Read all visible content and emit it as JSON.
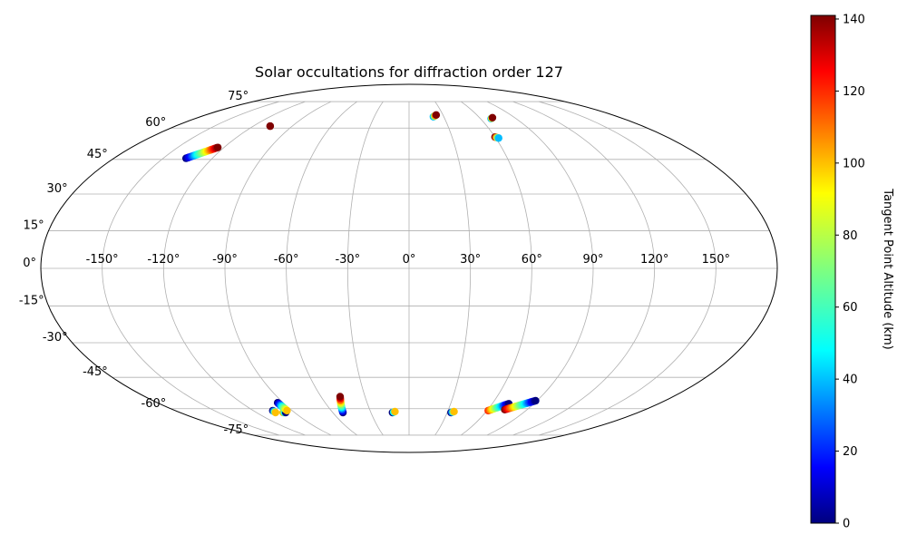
{
  "chart_data": {
    "type": "scatter",
    "projection": "mollweide",
    "title": "Solar occultations for diffraction order 127",
    "xlabel": "",
    "ylabel": "",
    "grid": true,
    "xlim": [
      -180,
      180
    ],
    "ylim": [
      -90,
      90
    ],
    "x_ticks": [
      -150,
      -120,
      -90,
      -60,
      -30,
      0,
      30,
      60,
      90,
      120,
      150
    ],
    "x_tick_labels": [
      "-150°",
      "-120°",
      "-90°",
      "-60°",
      "-30°",
      "0°",
      "30°",
      "60°",
      "90°",
      "120°",
      "150°"
    ],
    "y_ticks": [
      -75,
      -60,
      -45,
      -30,
      -15,
      0,
      15,
      30,
      45,
      60,
      75
    ],
    "y_tick_labels": [
      "-75°",
      "-60°",
      "-45°",
      "-30°",
      "-15°",
      "0°",
      "15°",
      "30°",
      "45°",
      "60°",
      "75°"
    ],
    "colorbar": {
      "label": "Tangent Point Altitude (km)",
      "min": 0,
      "max": 141,
      "ticks": [
        0,
        20,
        40,
        60,
        80,
        100,
        120,
        140
      ],
      "tick_labels": [
        "0",
        "20",
        "40",
        "60",
        "80",
        "100",
        "120",
        "140"
      ],
      "colormap": "jet"
    },
    "tracks": [
      {
        "start": [
          -136,
          45.5
        ],
        "end": [
          -124,
          50.5
        ],
        "alt_start": 0,
        "alt_end": 141
      },
      {
        "start": [
          -107,
          61
        ],
        "end": [
          -107,
          61
        ],
        "alt_start": 141,
        "alt_end": 141
      },
      {
        "start": [
          21,
          66
        ],
        "end": [
          24,
          67
        ],
        "alt_start": 40,
        "alt_end": 141
      },
      {
        "start": [
          69,
          65
        ],
        "end": [
          71,
          65.5
        ],
        "alt_start": 40,
        "alt_end": 141
      },
      {
        "start": [
          60,
          55.5
        ],
        "end": [
          62,
          55
        ],
        "alt_start": 141,
        "alt_end": 40
      },
      {
        "start": [
          -105,
          -61
        ],
        "end": [
          -105,
          -62
        ],
        "alt_start": 0,
        "alt_end": 100
      },
      {
        "start": [
          -99,
          -62
        ],
        "end": [
          -97,
          -62
        ],
        "alt_start": 100,
        "alt_end": 0
      },
      {
        "start": [
          -94,
          -57
        ],
        "end": [
          -94,
          -61
        ],
        "alt_start": 0,
        "alt_end": 100
      },
      {
        "start": [
          -52,
          -62
        ],
        "end": [
          -47,
          -54
        ],
        "alt_start": 0,
        "alt_end": 141,
        "alt_mid": 0
      },
      {
        "start": [
          -13,
          -62
        ],
        "end": [
          -11,
          -61.5
        ],
        "alt_start": 0,
        "alt_end": 100
      },
      {
        "start": [
          33,
          -62
        ],
        "end": [
          35,
          -61.5
        ],
        "alt_start": 0,
        "alt_end": 100
      },
      {
        "start": [
          61,
          -61
        ],
        "end": [
          72,
          -57.5
        ],
        "alt_start": 120,
        "alt_end": 0
      },
      {
        "start": [
          73,
          -60.5
        ],
        "end": [
          89,
          -56
        ],
        "alt_start": 141,
        "alt_end": 0
      }
    ]
  }
}
